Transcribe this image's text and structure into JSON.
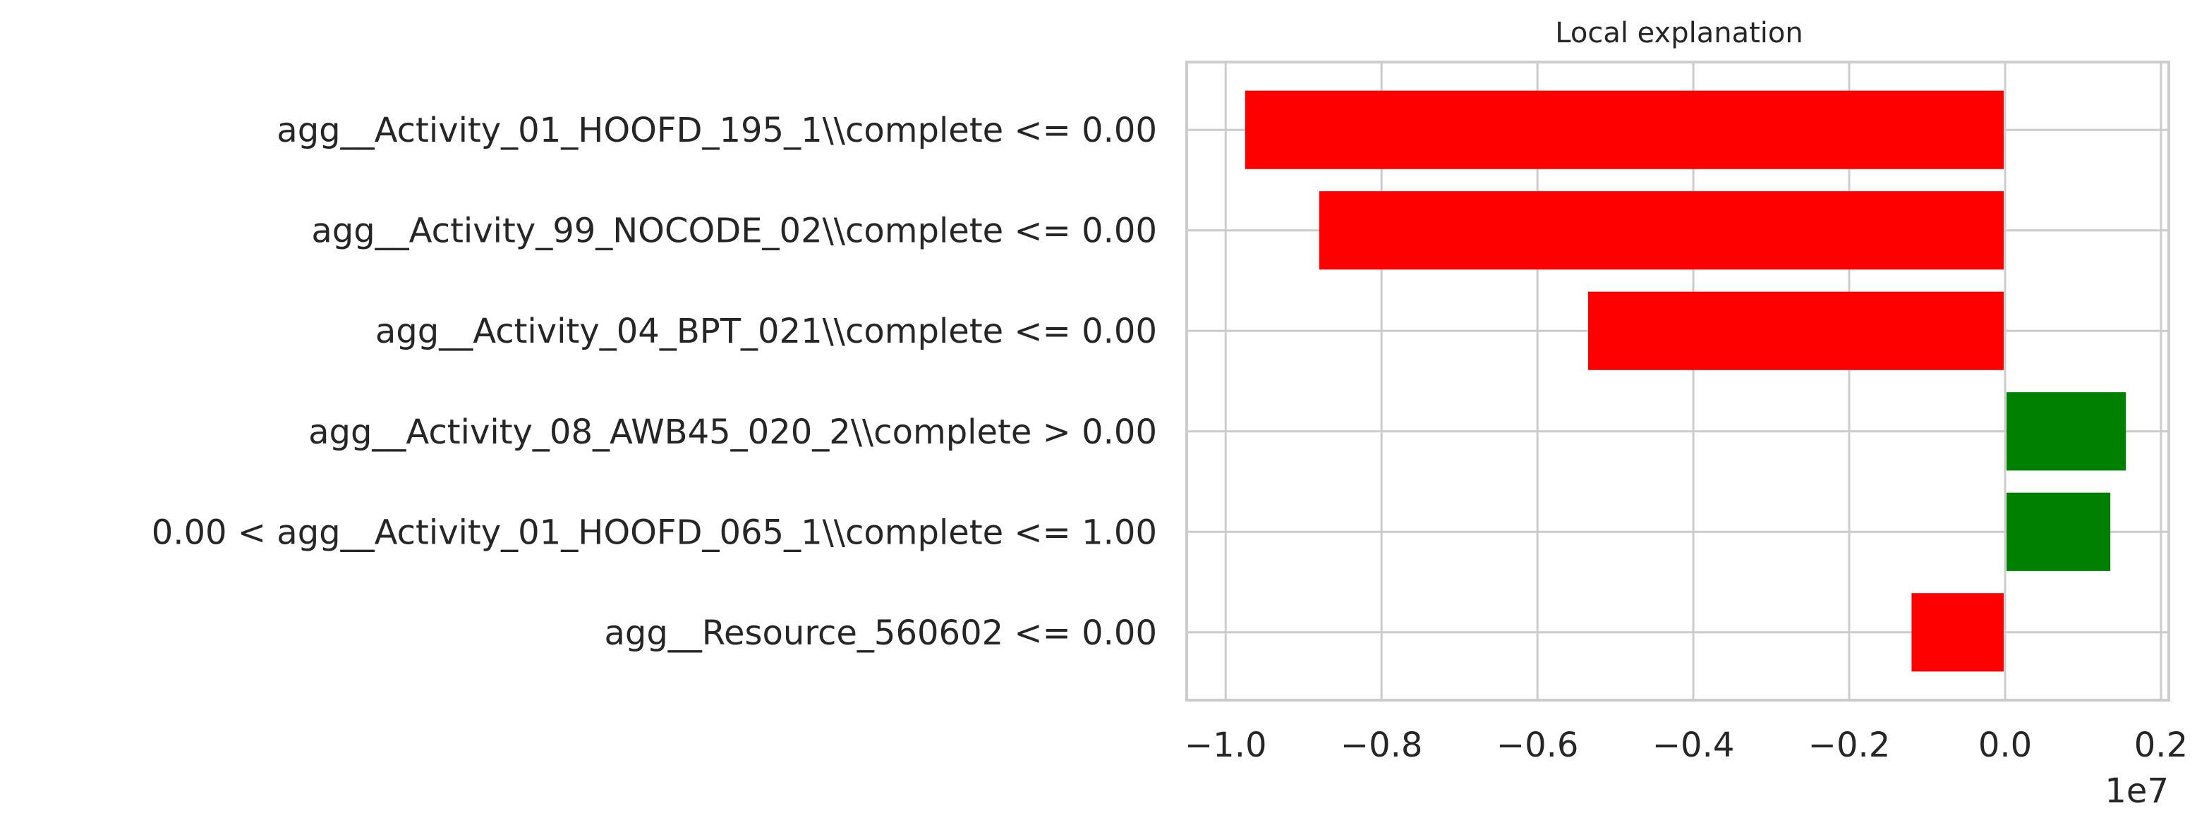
{
  "chart_data": {
    "type": "bar",
    "orientation": "horizontal",
    "title": "Local explanation",
    "xlabel": "",
    "ylabel": "",
    "x_scale_label": "1e7",
    "xlim": [
      -1.05,
      0.21
    ],
    "xticks": [
      -1.0,
      -0.8,
      -0.6,
      -0.4,
      -0.2,
      0.0,
      0.2
    ],
    "xtick_labels": [
      "−1.0",
      "−0.8",
      "−0.6",
      "−0.4",
      "−0.2",
      "0.0",
      "0.2"
    ],
    "grid": true,
    "categories": [
      "agg__Activity_01_HOOFD_195_1\\\\complete <= 0.00",
      "agg__Activity_99_NOCODE_02\\\\complete <= 0.00",
      "agg__Activity_04_BPT_021\\\\complete <= 0.00",
      "agg__Activity_08_AWB45_020_2\\\\complete > 0.00",
      "0.00 < agg__Activity_01_HOOFD_065_1\\\\complete <= 1.00",
      "agg__Resource_560602 <= 0.00"
    ],
    "values": [
      -0.975,
      -0.88,
      -0.535,
      0.155,
      0.135,
      -0.12
    ],
    "colors": {
      "positive": "#008000",
      "negative": "#ff0000"
    }
  }
}
